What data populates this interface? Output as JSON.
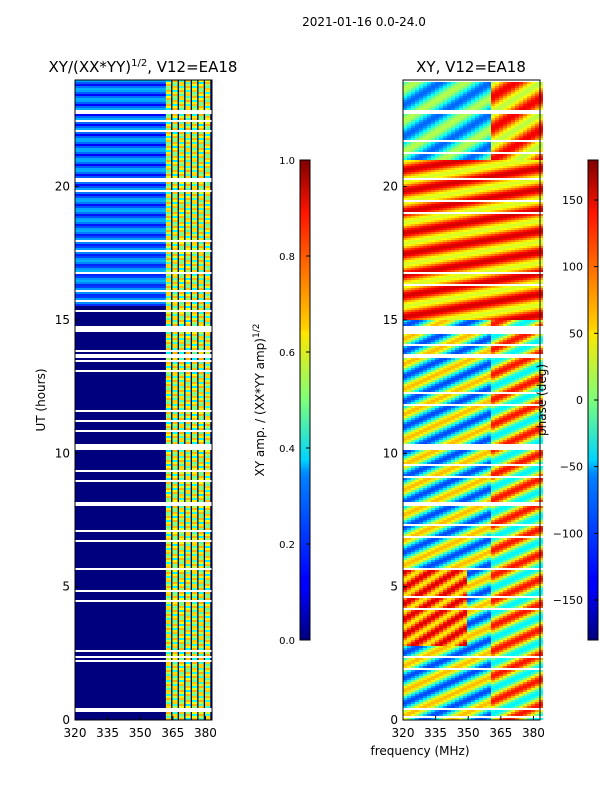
{
  "suptitle": "2021-01-16 0.0-24.0",
  "chart_data": [
    {
      "type": "heatmap",
      "title_main": "XY/(XX*YY)",
      "title_sup": "1/2",
      "title_tail": ", V12=EA18",
      "xlabel": "",
      "ylabel": "UT (hours)",
      "xlim": [
        320,
        383
      ],
      "ylim": [
        0,
        24
      ],
      "xticks": [
        320,
        335,
        350,
        365,
        380
      ],
      "yticks": [
        0,
        5,
        10,
        15,
        20
      ],
      "colormap": "jet",
      "band_frequencies_mhz": [
        363,
        366,
        369,
        372,
        375,
        378,
        381
      ],
      "colorbar": {
        "label_main": "XY amp. / (XX*YY amp)",
        "label_sup": "1/2",
        "range": [
          0.0,
          1.0
        ],
        "ticks": [
          "0.0",
          "0.2",
          "0.4",
          "0.6",
          "0.8",
          "1.0"
        ]
      }
    },
    {
      "type": "heatmap",
      "title": "XY, V12=EA18",
      "xlabel": "frequency (MHz)",
      "ylabel": "",
      "xlim": [
        320,
        383
      ],
      "ylim": [
        0,
        24
      ],
      "xticks": [
        320,
        335,
        350,
        365,
        380
      ],
      "yticks": [
        0,
        5,
        10,
        15,
        20
      ],
      "colormap": "jet",
      "colorbar": {
        "label": "phase (deg)",
        "range": [
          -180,
          180
        ],
        "ticks": [
          "150",
          "100",
          "50",
          "0",
          "−50",
          "−100",
          "−150"
        ],
        "tick_values": [
          150,
          100,
          50,
          0,
          -50,
          -100,
          -150
        ]
      }
    }
  ]
}
